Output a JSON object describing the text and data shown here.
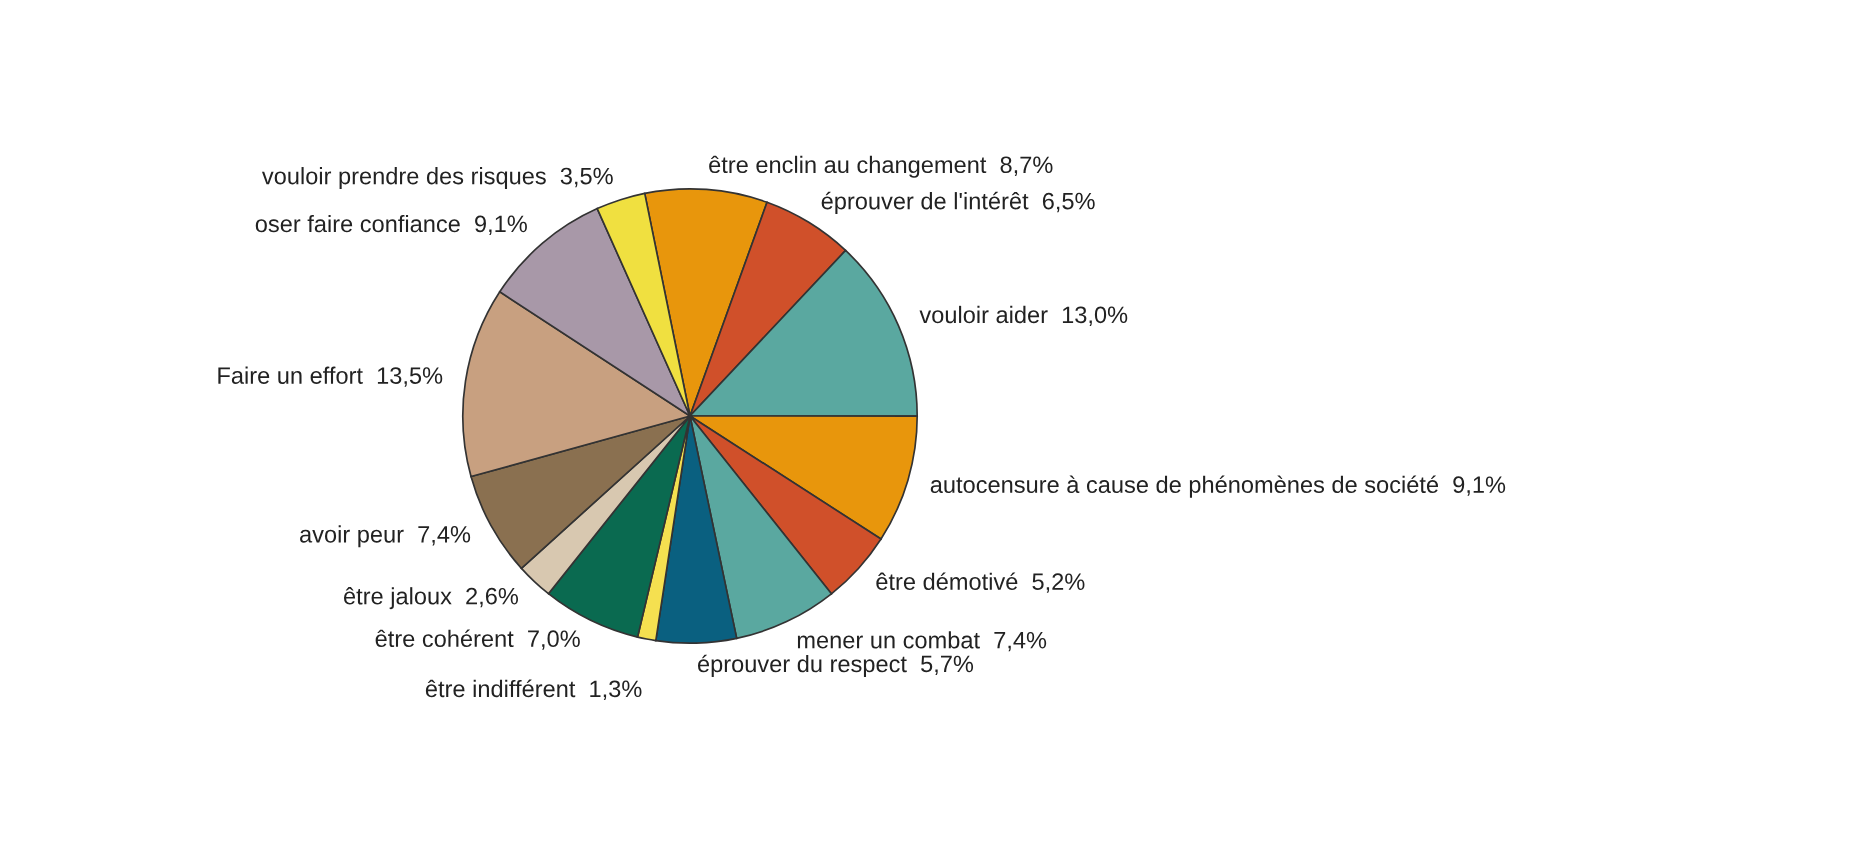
{
  "chart_data": {
    "type": "pie",
    "categories": [
      "être enclin au changement",
      "éprouver de l'intérêt",
      "vouloir aider",
      "autocensure à cause de phénomènes de société",
      "être démotivé",
      "mener un combat",
      "éprouver du respect",
      "être indifférent",
      "être cohérent",
      "être jaloux",
      "avoir peur",
      "Faire un effort",
      "oser faire confiance",
      "vouloir prendre des risques"
    ],
    "values": [
      8.7,
      6.5,
      13.0,
      9.1,
      5.2,
      7.4,
      5.7,
      1.3,
      7.0,
      2.6,
      7.4,
      13.5,
      9.1,
      3.5
    ],
    "value_labels": [
      "8,7%",
      "6,5%",
      "13,0%",
      "9,1%",
      "5,2%",
      "7,4%",
      "5,7%",
      "1,3%",
      "7,0%",
      "2,6%",
      "7,4%",
      "13,5%",
      "9,1%",
      "3,5%"
    ],
    "colors": [
      "#e8960c",
      "#d0502a",
      "#5aa8a0",
      "#e8960c",
      "#d0502a",
      "#5aa8a0",
      "#0a6080",
      "#f5e050",
      "#0a6a50",
      "#d8c8b0",
      "#8a7050",
      "#c8a080",
      "#a898a8",
      "#f0e040"
    ]
  }
}
